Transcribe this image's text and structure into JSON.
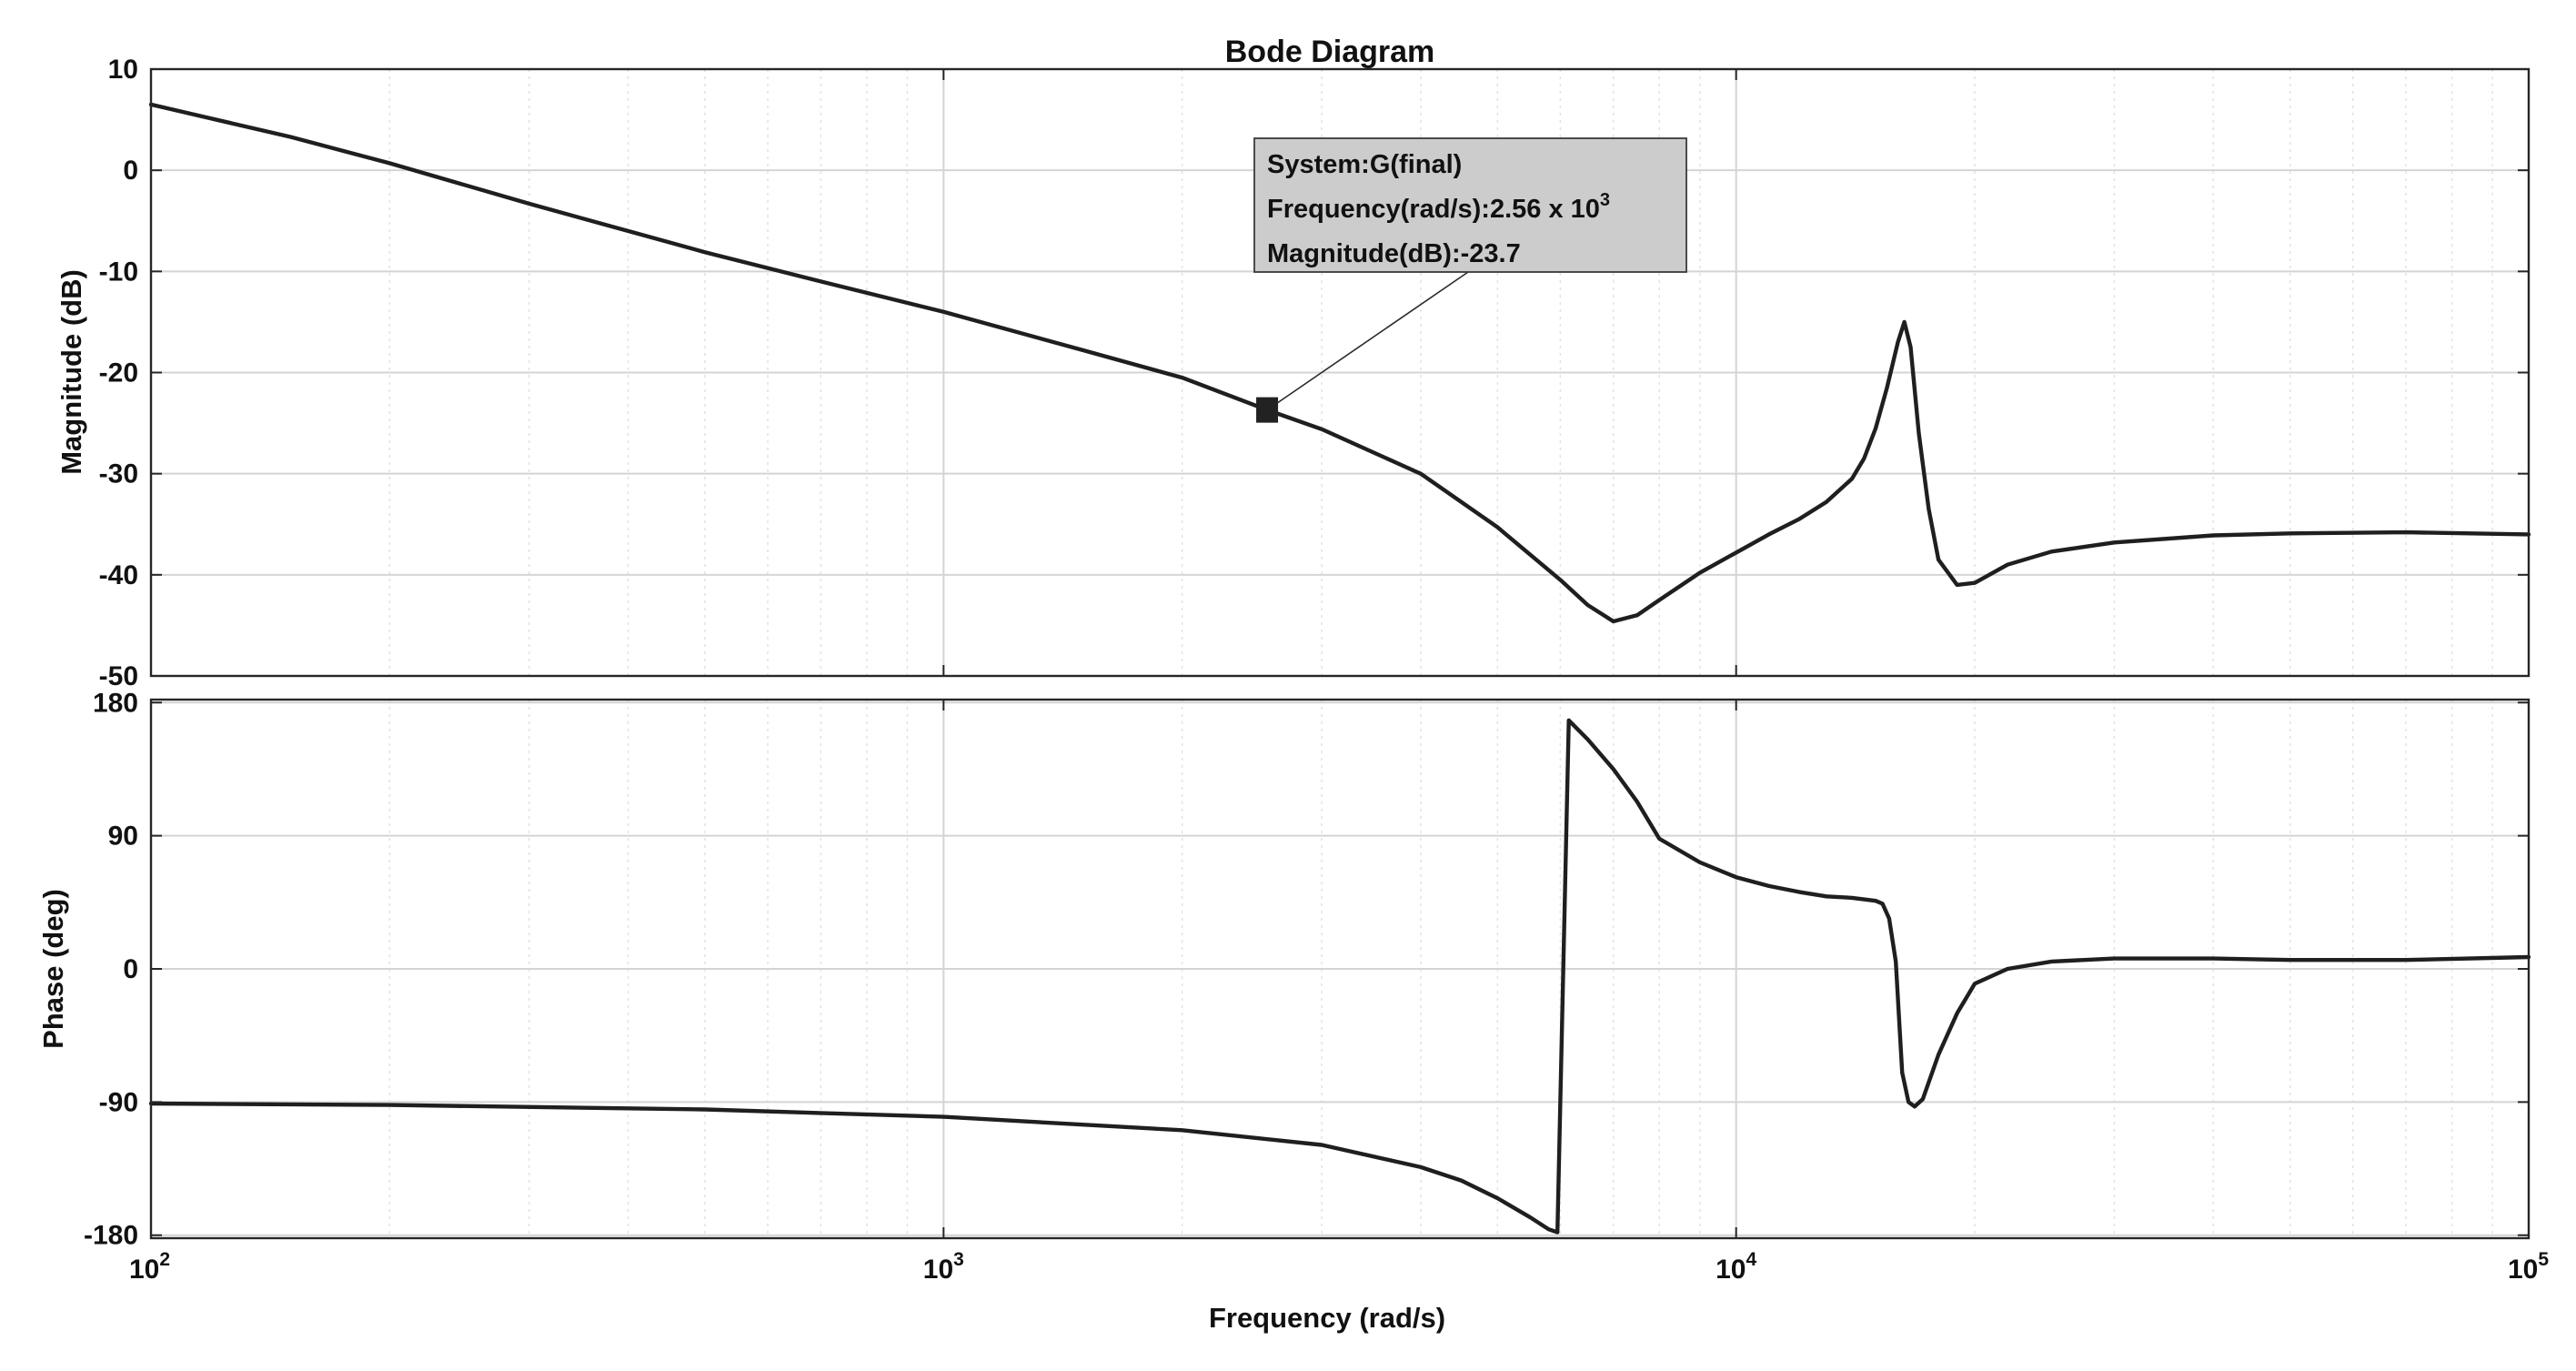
{
  "chart_data": {
    "type": "line",
    "title": "Bode Diagram",
    "xlabel": "Frequency  (rad/s)",
    "x_scale": "log",
    "xlim": [
      100,
      100000
    ],
    "x_ticks": [
      {
        "value": 100,
        "base": "10",
        "exp": "2"
      },
      {
        "value": 1000,
        "base": "10",
        "exp": "3"
      },
      {
        "value": 10000,
        "base": "10",
        "exp": "4"
      },
      {
        "value": 100000,
        "base": "10",
        "exp": "5"
      }
    ],
    "grid": true,
    "panels": [
      {
        "id": "magnitude",
        "ylabel": "Magnitude (dB)",
        "ylim": [
          -50,
          10
        ],
        "y_ticks": [
          10,
          0,
          -10,
          -20,
          -30,
          -40,
          -50
        ],
        "y_tick_labels": [
          "10",
          "0",
          "-10",
          "-20",
          "-30",
          "-40",
          "-50"
        ],
        "series": [
          {
            "x": [
              100,
              150,
              200,
              300,
              500,
              700,
              1000,
              1500,
              2000,
              2560,
              3000,
              4000,
              5000,
              6000,
              6500,
              7000,
              7500,
              8000,
              9000,
              10000,
              11000,
              12000,
              13000,
              14000,
              14500,
              15000,
              15500,
              16000,
              16300,
              16600,
              17000,
              17500,
              18000,
              19000,
              20000,
              22000,
              25000,
              30000,
              40000,
              50000,
              70000,
              100000
            ],
            "y": [
              6.5,
              3.3,
              0.7,
              -3.3,
              -8.1,
              -11.0,
              -14.0,
              -17.8,
              -20.5,
              -23.7,
              -25.6,
              -30.0,
              -35.3,
              -40.5,
              -43.0,
              -44.6,
              -44.0,
              -42.5,
              -39.8,
              -37.8,
              -36.0,
              -34.5,
              -32.8,
              -30.5,
              -28.5,
              -25.5,
              -21.5,
              -17.0,
              -15.0,
              -17.5,
              -26.0,
              -33.5,
              -38.5,
              -41.0,
              -40.8,
              -39.0,
              -37.7,
              -36.8,
              -36.1,
              -35.9,
              -35.8,
              -36.0
            ]
          }
        ],
        "datatip": {
          "x": 2560,
          "y": -23.7,
          "line1": "System:G(final)",
          "line2_prefix": "Frequency(rad/s):",
          "line2_mantissa": "2.56 x 10",
          "line2_exp": "3",
          "line3": "Magnitude(dB):-23.7"
        }
      },
      {
        "id": "phase",
        "ylabel": "Phase (deg)",
        "ylim": [
          -182,
          182
        ],
        "y_ticks": [
          180,
          90,
          0,
          -90,
          -180
        ],
        "y_tick_labels": [
          "180",
          "90",
          "0",
          "-90",
          "-180"
        ],
        "series": [
          {
            "x": [
              100,
              200,
              500,
              1000,
              2000,
              3000,
              4000,
              4500,
              5000,
              5500,
              5800,
              5950,
              6150,
              6500,
              7000,
              7500,
              8000,
              9000,
              10000,
              11000,
              12000,
              13000,
              14000,
              14500,
              15000,
              15300,
              15600,
              15900,
              16200,
              16500,
              16800,
              17200,
              18000,
              19000,
              20000,
              22000,
              25000,
              30000,
              40000,
              50000,
              70000,
              100000
            ],
            "y": [
              -91,
              -92,
              -95,
              -100,
              -109,
              -119,
              -134,
              -143,
              -155,
              -168,
              -176,
              -178,
              168,
              155,
              135,
              113,
              88,
              72,
              62,
              56,
              52,
              49,
              48,
              47,
              46,
              44,
              34,
              5,
              -70,
              -90,
              -93,
              -88,
              -58,
              -30,
              -10,
              0,
              5,
              7,
              7,
              6,
              6,
              8
            ]
          }
        ]
      }
    ]
  }
}
